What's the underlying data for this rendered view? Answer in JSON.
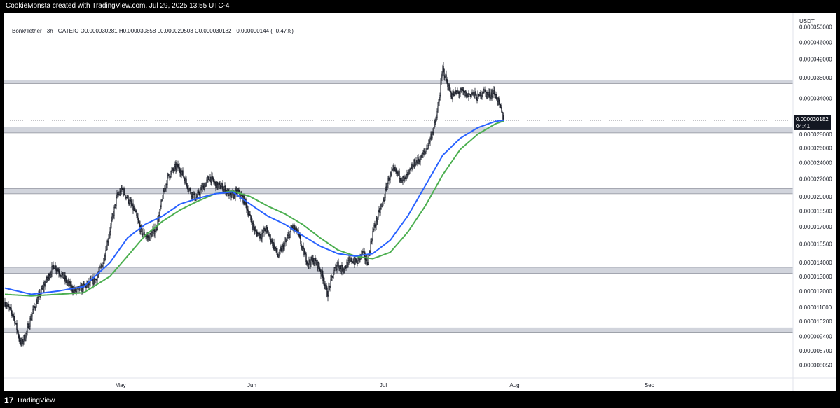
{
  "header": {
    "text": "CookieMonsta created with TradingView.com, Jul 29, 2025 13:55 UTC-4"
  },
  "legend": {
    "text": "Bonk/Tether · 3h · GATEIO  O0.000030281  H0.000030858  L0.000029503  C0.000030182  −0.000000144 (−0.47%)"
  },
  "footer": {
    "logo_mark": "17",
    "brand": "TradingView"
  },
  "colors": {
    "candle": "#131722",
    "ema_fast": "#2962ff",
    "ema_slow": "#4caf50",
    "zone": "#d1d4dc",
    "zone_border": "#787b86"
  },
  "chart_data": {
    "type": "candlestick",
    "symbol": "Bonk/Tether",
    "timeframe": "3h",
    "exchange": "GATEIO",
    "currency": "USDT",
    "scale": "log",
    "ohlc": {
      "open": 3.0281e-05,
      "high": 3.0858e-05,
      "low": 2.9503e-05,
      "close": 3.0182e-05,
      "change": -1.44e-07,
      "change_pct": -0.47
    },
    "last_price": "0.000030182",
    "countdown": "04:41",
    "x_ticks": [
      "May",
      "Jun",
      "Jul",
      "Aug",
      "Sep"
    ],
    "y_ticks": [
      "0.000050000",
      "0.000046000",
      "0.000042000",
      "0.000038000",
      "0.000034000",
      "0.000031000",
      "0.000028000",
      "0.000026000",
      "0.000024000",
      "0.000022000",
      "0.000020000",
      "0.000018500",
      "0.000017000",
      "0.000015500",
      "0.000014000",
      "0.000013000",
      "0.000012000",
      "0.000011000",
      "0.000010200",
      "0.000009400",
      "0.000008700",
      "0.000008050"
    ],
    "zones": [
      {
        "low": 3.68e-05,
        "high": 3.75e-05
      },
      {
        "low": 2.82e-05,
        "high": 2.91e-05
      },
      {
        "low": 2.03e-05,
        "high": 2.09e-05
      },
      {
        "low": 1.32e-05,
        "high": 1.365e-05
      },
      {
        "low": 9.58e-06,
        "high": 9.85e-06
      }
    ],
    "close_path": [
      [
        0,
        1.13e-05
      ],
      [
        5,
        1.05e-05
      ],
      [
        9,
        9e-06
      ],
      [
        12,
        9.5e-06
      ],
      [
        16,
        1.08e-05
      ],
      [
        20,
        1.18e-05
      ],
      [
        24,
        1.28e-05
      ],
      [
        28,
        1.38e-05
      ],
      [
        32,
        1.32e-05
      ],
      [
        36,
        1.25e-05
      ],
      [
        40,
        1.2e-05
      ],
      [
        44,
        1.22e-05
      ],
      [
        48,
        1.25e-05
      ],
      [
        52,
        1.28e-05
      ],
      [
        56,
        1.4e-05
      ],
      [
        59,
        1.6e-05
      ],
      [
        61,
        1.75e-05
      ],
      [
        64,
        2e-05
      ],
      [
        67,
        2.08e-05
      ],
      [
        70,
        1.98e-05
      ],
      [
        74,
        1.85e-05
      ],
      [
        78,
        1.65e-05
      ],
      [
        82,
        1.6e-05
      ],
      [
        86,
        1.68e-05
      ],
      [
        88,
        1.8e-05
      ],
      [
        90,
        2e-05
      ],
      [
        93,
        2.22e-05
      ],
      [
        95,
        2.28e-05
      ],
      [
        98,
        2.35e-05
      ],
      [
        100,
        2.32e-05
      ],
      [
        103,
        2.18e-05
      ],
      [
        106,
        2.05e-05
      ],
      [
        109,
        1.98e-05
      ],
      [
        113,
        2.1e-05
      ],
      [
        117,
        2.22e-05
      ],
      [
        121,
        2.12e-05
      ],
      [
        125,
        2.1e-05
      ],
      [
        129,
        2e-05
      ],
      [
        133,
        2.05e-05
      ],
      [
        137,
        1.95e-05
      ],
      [
        140,
        1.78e-05
      ],
      [
        143,
        1.65e-05
      ],
      [
        146,
        1.62e-05
      ],
      [
        149,
        1.68e-05
      ],
      [
        153,
        1.55e-05
      ],
      [
        156,
        1.45e-05
      ],
      [
        158,
        1.5e-05
      ],
      [
        161,
        1.58e-05
      ],
      [
        164,
        1.7e-05
      ],
      [
        167,
        1.65e-05
      ],
      [
        170,
        1.5e-05
      ],
      [
        173,
        1.4e-05
      ],
      [
        176,
        1.42e-05
      ],
      [
        179,
        1.38e-05
      ],
      [
        182,
        1.28e-05
      ],
      [
        184,
        1.18e-05
      ],
      [
        187,
        1.3e-05
      ],
      [
        190,
        1.4e-05
      ],
      [
        192,
        1.35e-05
      ],
      [
        195,
        1.38e-05
      ],
      [
        198,
        1.42e-05
      ],
      [
        201,
        1.4e-05
      ],
      [
        204,
        1.48e-05
      ],
      [
        207,
        1.4e-05
      ],
      [
        210,
        1.65e-05
      ],
      [
        213,
        1.8e-05
      ],
      [
        216,
        1.95e-05
      ],
      [
        219,
        2.2e-05
      ],
      [
        222,
        2.3e-05
      ],
      [
        225,
        2.25e-05
      ],
      [
        228,
        2.18e-05
      ],
      [
        231,
        2.28e-05
      ],
      [
        234,
        2.4e-05
      ],
      [
        237,
        2.45e-05
      ],
      [
        240,
        2.55e-05
      ],
      [
        243,
        2.75e-05
      ],
      [
        246,
        3e-05
      ],
      [
        248,
        3.4e-05
      ],
      [
        250,
        4e-05
      ],
      [
        252,
        3.75e-05
      ],
      [
        255,
        3.45e-05
      ],
      [
        258,
        3.5e-05
      ],
      [
        261,
        3.52e-05
      ],
      [
        264,
        3.45e-05
      ],
      [
        267,
        3.5e-05
      ],
      [
        270,
        3.4e-05
      ],
      [
        273,
        3.55e-05
      ],
      [
        276,
        3.45e-05
      ],
      [
        279,
        3.52e-05
      ],
      [
        281,
        3.4e-05
      ],
      [
        283,
        3.2e-05
      ],
      [
        285,
        3.02e-05
      ]
    ],
    "ema_fast": [
      [
        0,
        1.22e-05
      ],
      [
        15,
        1.18e-05
      ],
      [
        30,
        1.2e-05
      ],
      [
        45,
        1.23e-05
      ],
      [
        60,
        1.4e-05
      ],
      [
        70,
        1.6e-05
      ],
      [
        80,
        1.72e-05
      ],
      [
        90,
        1.8e-05
      ],
      [
        100,
        1.92e-05
      ],
      [
        110,
        1.98e-05
      ],
      [
        120,
        2.03e-05
      ],
      [
        130,
        2.05e-05
      ],
      [
        140,
        1.92e-05
      ],
      [
        150,
        1.8e-05
      ],
      [
        160,
        1.72e-05
      ],
      [
        170,
        1.62e-05
      ],
      [
        180,
        1.53e-05
      ],
      [
        190,
        1.47e-05
      ],
      [
        200,
        1.45e-05
      ],
      [
        210,
        1.47e-05
      ],
      [
        220,
        1.58e-05
      ],
      [
        230,
        1.8e-05
      ],
      [
        240,
        2.12e-05
      ],
      [
        250,
        2.5e-05
      ],
      [
        260,
        2.74e-05
      ],
      [
        270,
        2.9e-05
      ],
      [
        280,
        3e-05
      ],
      [
        285,
        3.02e-05
      ]
    ],
    "ema_slow": [
      [
        0,
        1.18e-05
      ],
      [
        15,
        1.17e-05
      ],
      [
        30,
        1.18e-05
      ],
      [
        45,
        1.19e-05
      ],
      [
        60,
        1.3e-05
      ],
      [
        70,
        1.45e-05
      ],
      [
        80,
        1.62e-05
      ],
      [
        90,
        1.75e-05
      ],
      [
        100,
        1.86e-05
      ],
      [
        110,
        1.95e-05
      ],
      [
        120,
        2.03e-05
      ],
      [
        130,
        2.06e-05
      ],
      [
        140,
        2e-05
      ],
      [
        150,
        1.9e-05
      ],
      [
        160,
        1.82e-05
      ],
      [
        170,
        1.72e-05
      ],
      [
        180,
        1.6e-05
      ],
      [
        190,
        1.5e-05
      ],
      [
        200,
        1.45e-05
      ],
      [
        210,
        1.43e-05
      ],
      [
        220,
        1.48e-05
      ],
      [
        230,
        1.65e-05
      ],
      [
        240,
        1.9e-05
      ],
      [
        250,
        2.25e-05
      ],
      [
        260,
        2.58e-05
      ],
      [
        270,
        2.8e-05
      ],
      [
        280,
        2.96e-05
      ],
      [
        285,
        3.01e-05
      ]
    ]
  }
}
